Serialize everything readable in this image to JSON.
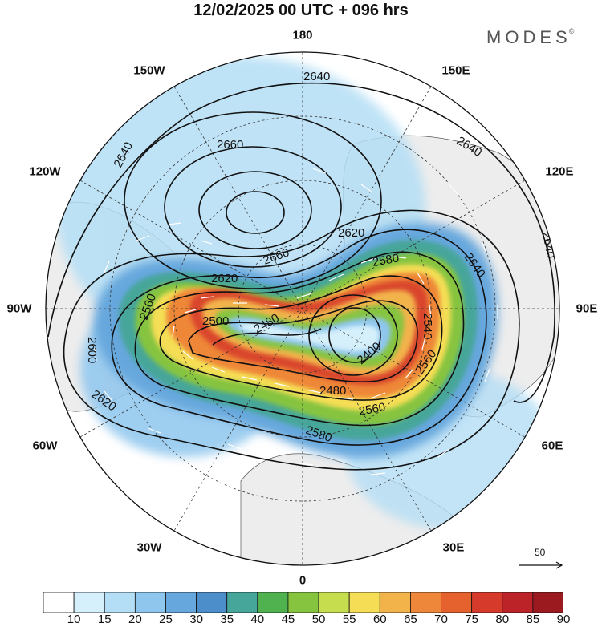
{
  "title": "12/02/2025  00 UTC  + 096 hrs",
  "brand": "MODES",
  "brand_mark": "©",
  "longitude_labels": {
    "top": "180",
    "top_left": "150W",
    "top_right": "150E",
    "upper_left": "120W",
    "upper_right": "120E",
    "left": "90W",
    "right": "90E",
    "lower_left": "60W",
    "lower_right": "60E",
    "bottom_left": "30W",
    "bottom_right": "30E",
    "bottom": "0"
  },
  "contour_labels": [
    "2640",
    "2640",
    "2660",
    "2640",
    "2640",
    "2620",
    "2660",
    "2620",
    "2640",
    "2580",
    "2500",
    "2480",
    "2600",
    "2620",
    "2560",
    "2480",
    "2400",
    "2560",
    "2580",
    "2540",
    "2560"
  ],
  "wind_scale": {
    "label": "50",
    "icon": "arrow-right-icon"
  },
  "colorbar": {
    "labels": [
      "10",
      "15",
      "20",
      "25",
      "30",
      "35",
      "40",
      "45",
      "50",
      "55",
      "60",
      "65",
      "70",
      "75",
      "80",
      "85",
      "90"
    ],
    "colors": [
      "#ffffff",
      "#d6f0fb",
      "#b4def5",
      "#8ec6ee",
      "#66a7dd",
      "#4b8ec9",
      "#46a69a",
      "#4fb24e",
      "#86c440",
      "#c6dd4e",
      "#f5de55",
      "#f3b34b",
      "#ee8739",
      "#e5622f",
      "#d63a2a",
      "#bb2328",
      "#9a1a20"
    ]
  },
  "colors": {
    "land": "#ededed",
    "ocean": "#ffffff",
    "jet_core": "#d63a2a"
  }
}
